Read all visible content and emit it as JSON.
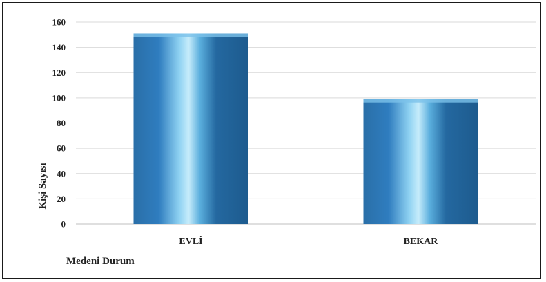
{
  "chart_data": {
    "type": "bar",
    "categories": [
      "EVLİ",
      "BEKAR"
    ],
    "values": [
      151,
      99
    ],
    "title": "",
    "xlabel": "Medeni Durum",
    "ylabel": "Kişi Sayısı",
    "ylim": [
      0,
      160
    ],
    "yticks": [
      0,
      20,
      40,
      60,
      80,
      100,
      120,
      140,
      160
    ],
    "grid": true,
    "legend": "none",
    "colors": {
      "bar_dark": "#1f5f93",
      "bar_mid": "#3a86c6",
      "bar_light": "#bfe9fb",
      "gridline": "#d9d9d9"
    }
  }
}
